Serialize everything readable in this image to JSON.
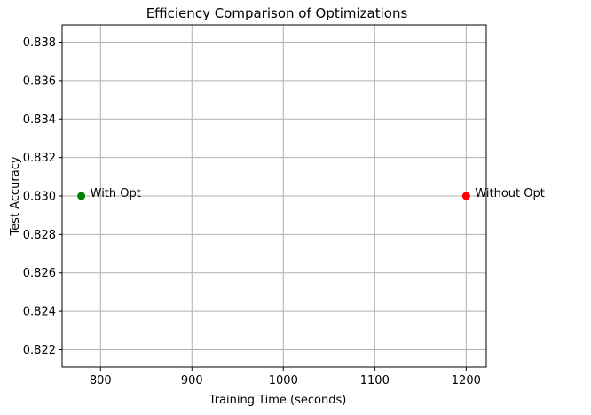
{
  "chart_data": {
    "type": "scatter",
    "title": "Efficiency Comparison of Optimizations",
    "xlabel": "Training Time (seconds)",
    "ylabel": "Test Accuracy",
    "xlim": [
      758,
      1222
    ],
    "ylim": [
      0.8211,
      0.8389
    ],
    "xticks": [
      800,
      900,
      1000,
      1100,
      1200
    ],
    "xtick_labels": [
      "800",
      "900",
      "1000",
      "1100",
      "1200"
    ],
    "yticks": [
      0.822,
      0.824,
      0.826,
      0.828,
      0.83,
      0.832,
      0.834,
      0.836,
      0.838
    ],
    "ytick_labels": [
      "0.822",
      "0.824",
      "0.826",
      "0.828",
      "0.830",
      "0.832",
      "0.834",
      "0.836",
      "0.838"
    ],
    "grid": true,
    "points": [
      {
        "label": "With Opt",
        "x": 779,
        "y": 0.83,
        "color": "#008000"
      },
      {
        "label": "Without Opt",
        "x": 1200,
        "y": 0.83,
        "color": "#ff0000"
      }
    ]
  }
}
